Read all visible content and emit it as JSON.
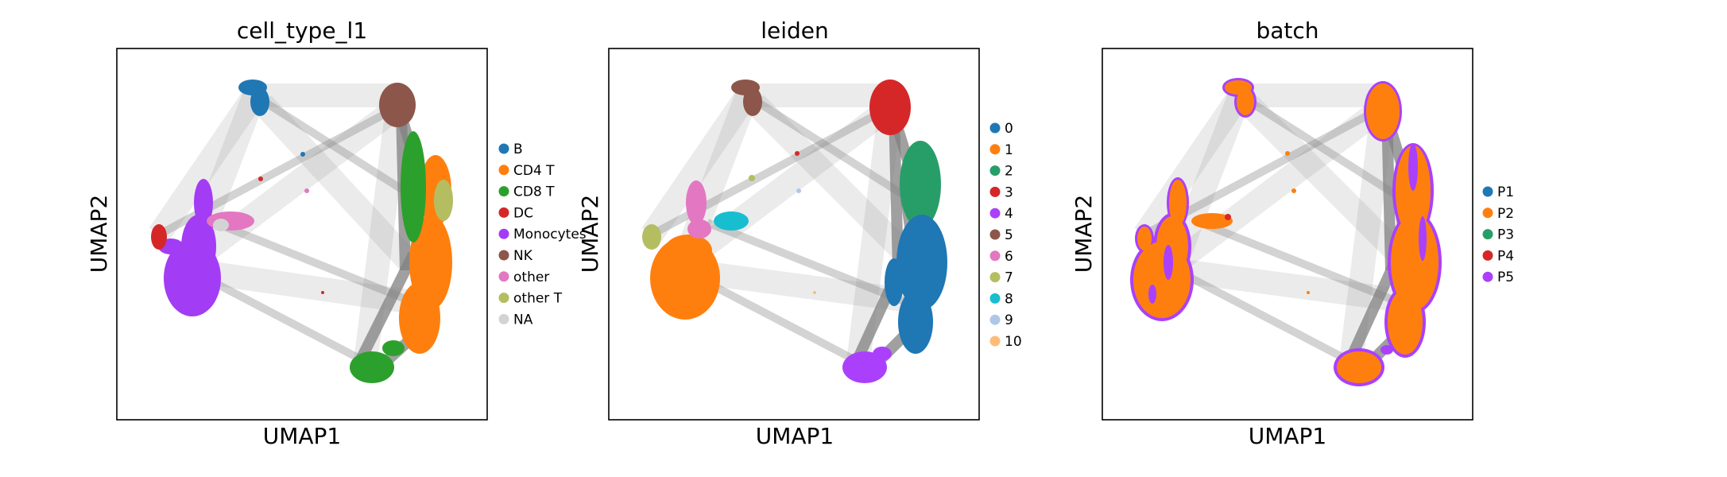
{
  "chart_data": [
    {
      "type": "scatter",
      "title": "cell_type_l1",
      "xlabel": "UMAP1",
      "ylabel": "UMAP2",
      "grid": false,
      "legend_placement": "right",
      "legend": [
        {
          "label": "B",
          "color": "#1f77b4"
        },
        {
          "label": "CD4 T",
          "color": "#ff7f0e"
        },
        {
          "label": "CD8 T",
          "color": "#2ca02c"
        },
        {
          "label": "DC",
          "color": "#d62728"
        },
        {
          "label": "Monocytes",
          "color": "#a33cf5"
        },
        {
          "label": "NK",
          "color": "#8c564b"
        },
        {
          "label": "other",
          "color": "#e377c2"
        },
        {
          "label": "other T",
          "color": "#b5bd61"
        },
        {
          "label": "NA",
          "color": "#d3d3d3"
        }
      ]
    },
    {
      "type": "scatter",
      "title": "leiden",
      "xlabel": "UMAP1",
      "ylabel": "UMAP2",
      "grid": false,
      "legend_placement": "right",
      "legend": [
        {
          "label": "0",
          "color": "#1f77b4"
        },
        {
          "label": "1",
          "color": "#ff7f0e"
        },
        {
          "label": "2",
          "color": "#279e68"
        },
        {
          "label": "3",
          "color": "#d62728"
        },
        {
          "label": "4",
          "color": "#aa40fc"
        },
        {
          "label": "5",
          "color": "#8c564b"
        },
        {
          "label": "6",
          "color": "#e377c2"
        },
        {
          "label": "7",
          "color": "#b5bd61"
        },
        {
          "label": "8",
          "color": "#17becf"
        },
        {
          "label": "9",
          "color": "#aec7e8"
        },
        {
          "label": "10",
          "color": "#ffbb78"
        }
      ]
    },
    {
      "type": "scatter",
      "title": "batch",
      "xlabel": "UMAP1",
      "ylabel": "UMAP2",
      "grid": false,
      "legend_placement": "right",
      "legend": [
        {
          "label": "P1",
          "color": "#1f77b4"
        },
        {
          "label": "P2",
          "color": "#ff7f0e"
        },
        {
          "label": "P3",
          "color": "#279e68"
        },
        {
          "label": "P4",
          "color": "#d62728"
        },
        {
          "label": "P5",
          "color": "#aa40fc"
        }
      ]
    }
  ]
}
